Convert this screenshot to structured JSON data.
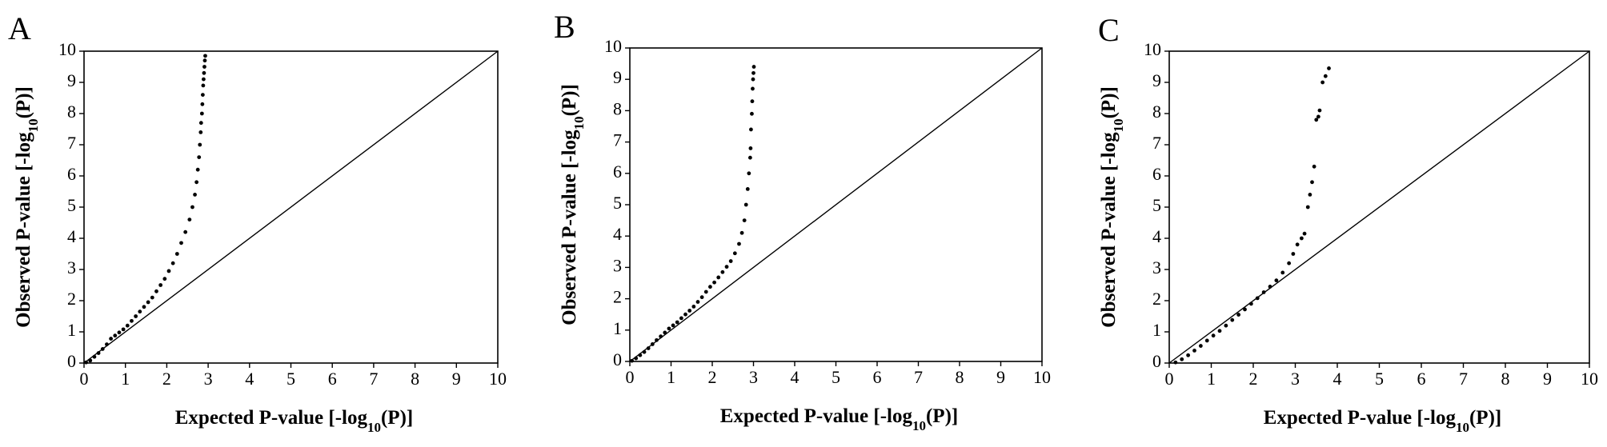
{
  "chart_data": [
    {
      "type": "scatter",
      "panel_label": "A",
      "xlabel": "Expected P-value [-log10(P)]",
      "ylabel": "Observed P-value [-log10(P)]",
      "xlim": [
        0,
        10
      ],
      "ylim": [
        0,
        10
      ],
      "x_ticks": [
        "0",
        "1",
        "2",
        "3",
        "4",
        "5",
        "6",
        "7",
        "8",
        "9",
        "10"
      ],
      "y_ticks": [
        "0",
        "1",
        "2",
        "3",
        "4",
        "5",
        "6",
        "7",
        "8",
        "9",
        "10"
      ],
      "reference_line": "y = x",
      "grid": false,
      "legend": "none",
      "points": [
        [
          0.05,
          0.02
        ],
        [
          0.15,
          0.08
        ],
        [
          0.25,
          0.2
        ],
        [
          0.35,
          0.32
        ],
        [
          0.45,
          0.45
        ],
        [
          0.55,
          0.6
        ],
        [
          0.65,
          0.78
        ],
        [
          0.75,
          0.88
        ],
        [
          0.85,
          0.98
        ],
        [
          0.95,
          1.08
        ],
        [
          1.05,
          1.2
        ],
        [
          1.15,
          1.35
        ],
        [
          1.25,
          1.5
        ],
        [
          1.35,
          1.65
        ],
        [
          1.45,
          1.8
        ],
        [
          1.55,
          1.95
        ],
        [
          1.65,
          2.1
        ],
        [
          1.75,
          2.3
        ],
        [
          1.85,
          2.5
        ],
        [
          1.95,
          2.7
        ],
        [
          2.05,
          2.95
        ],
        [
          2.15,
          3.2
        ],
        [
          2.25,
          3.5
        ],
        [
          2.35,
          3.85
        ],
        [
          2.45,
          4.2
        ],
        [
          2.55,
          4.6
        ],
        [
          2.62,
          5.0
        ],
        [
          2.68,
          5.4
        ],
        [
          2.72,
          5.8
        ],
        [
          2.75,
          6.2
        ],
        [
          2.78,
          6.6
        ],
        [
          2.8,
          7.0
        ],
        [
          2.82,
          7.4
        ],
        [
          2.83,
          7.7
        ],
        [
          2.85,
          8.0
        ],
        [
          2.86,
          8.3
        ],
        [
          2.87,
          8.6
        ],
        [
          2.88,
          8.9
        ],
        [
          2.89,
          9.1
        ],
        [
          2.9,
          9.3
        ],
        [
          2.91,
          9.5
        ],
        [
          2.92,
          9.7
        ],
        [
          2.93,
          9.85
        ]
      ]
    },
    {
      "type": "scatter",
      "panel_label": "B",
      "xlabel": "Expected P-value [-log10(P)]",
      "ylabel": "Observed P-value [-log10(P)]",
      "xlim": [
        0,
        10
      ],
      "ylim": [
        0,
        10
      ],
      "x_ticks": [
        "0",
        "1",
        "2",
        "3",
        "4",
        "5",
        "6",
        "7",
        "8",
        "9",
        "10"
      ],
      "y_ticks": [
        "0",
        "1",
        "2",
        "3",
        "4",
        "5",
        "6",
        "7",
        "8",
        "9",
        "10"
      ],
      "reference_line": "y = x",
      "grid": false,
      "legend": "none",
      "points": [
        [
          0.05,
          0.02
        ],
        [
          0.15,
          0.1
        ],
        [
          0.25,
          0.2
        ],
        [
          0.35,
          0.3
        ],
        [
          0.45,
          0.42
        ],
        [
          0.55,
          0.55
        ],
        [
          0.65,
          0.68
        ],
        [
          0.75,
          0.8
        ],
        [
          0.85,
          0.92
        ],
        [
          0.95,
          1.05
        ],
        [
          1.05,
          1.15
        ],
        [
          1.15,
          1.25
        ],
        [
          1.25,
          1.38
        ],
        [
          1.35,
          1.5
        ],
        [
          1.45,
          1.62
        ],
        [
          1.55,
          1.75
        ],
        [
          1.65,
          1.9
        ],
        [
          1.75,
          2.05
        ],
        [
          1.85,
          2.22
        ],
        [
          1.95,
          2.38
        ],
        [
          2.05,
          2.52
        ],
        [
          2.15,
          2.68
        ],
        [
          2.25,
          2.85
        ],
        [
          2.35,
          3.02
        ],
        [
          2.45,
          3.2
        ],
        [
          2.55,
          3.45
        ],
        [
          2.65,
          3.75
        ],
        [
          2.72,
          4.1
        ],
        [
          2.78,
          4.5
        ],
        [
          2.82,
          5.0
        ],
        [
          2.86,
          5.5
        ],
        [
          2.89,
          6.0
        ],
        [
          2.92,
          6.5
        ],
        [
          2.93,
          6.8
        ],
        [
          2.94,
          7.4
        ],
        [
          2.96,
          7.9
        ],
        [
          2.97,
          8.3
        ],
        [
          2.98,
          8.7
        ],
        [
          2.99,
          9.0
        ],
        [
          3.0,
          9.2
        ],
        [
          3.01,
          9.4
        ]
      ]
    },
    {
      "type": "scatter",
      "panel_label": "C",
      "xlabel": "Expected P-value [-log10(P)]",
      "ylabel": "Observed P-value [-log10(P)]",
      "xlim": [
        0,
        10
      ],
      "ylim": [
        0,
        10
      ],
      "x_ticks": [
        "0",
        "1",
        "2",
        "3",
        "4",
        "5",
        "6",
        "7",
        "8",
        "9",
        "10"
      ],
      "y_ticks": [
        "0",
        "1",
        "2",
        "3",
        "4",
        "5",
        "6",
        "7",
        "8",
        "9",
        "10"
      ],
      "reference_line": "y = x",
      "grid": false,
      "legend": "none",
      "points": [
        [
          0.15,
          0.02
        ],
        [
          0.3,
          0.12
        ],
        [
          0.45,
          0.25
        ],
        [
          0.6,
          0.4
        ],
        [
          0.75,
          0.55
        ],
        [
          0.9,
          0.72
        ],
        [
          1.05,
          0.88
        ],
        [
          1.2,
          1.03
        ],
        [
          1.35,
          1.2
        ],
        [
          1.5,
          1.38
        ],
        [
          1.65,
          1.55
        ],
        [
          1.8,
          1.72
        ],
        [
          1.95,
          1.9
        ],
        [
          2.1,
          2.08
        ],
        [
          2.25,
          2.27
        ],
        [
          2.4,
          2.45
        ],
        [
          2.55,
          2.65
        ],
        [
          2.7,
          2.9
        ],
        [
          2.85,
          3.2
        ],
        [
          2.95,
          3.5
        ],
        [
          3.05,
          3.8
        ],
        [
          3.15,
          4.0
        ],
        [
          3.22,
          4.15
        ],
        [
          3.3,
          5.0
        ],
        [
          3.35,
          5.4
        ],
        [
          3.4,
          5.8
        ],
        [
          3.45,
          6.3
        ],
        [
          3.5,
          7.8
        ],
        [
          3.55,
          7.9
        ],
        [
          3.58,
          8.1
        ],
        [
          3.65,
          9.0
        ],
        [
          3.72,
          9.2
        ],
        [
          3.8,
          9.45
        ]
      ]
    }
  ]
}
